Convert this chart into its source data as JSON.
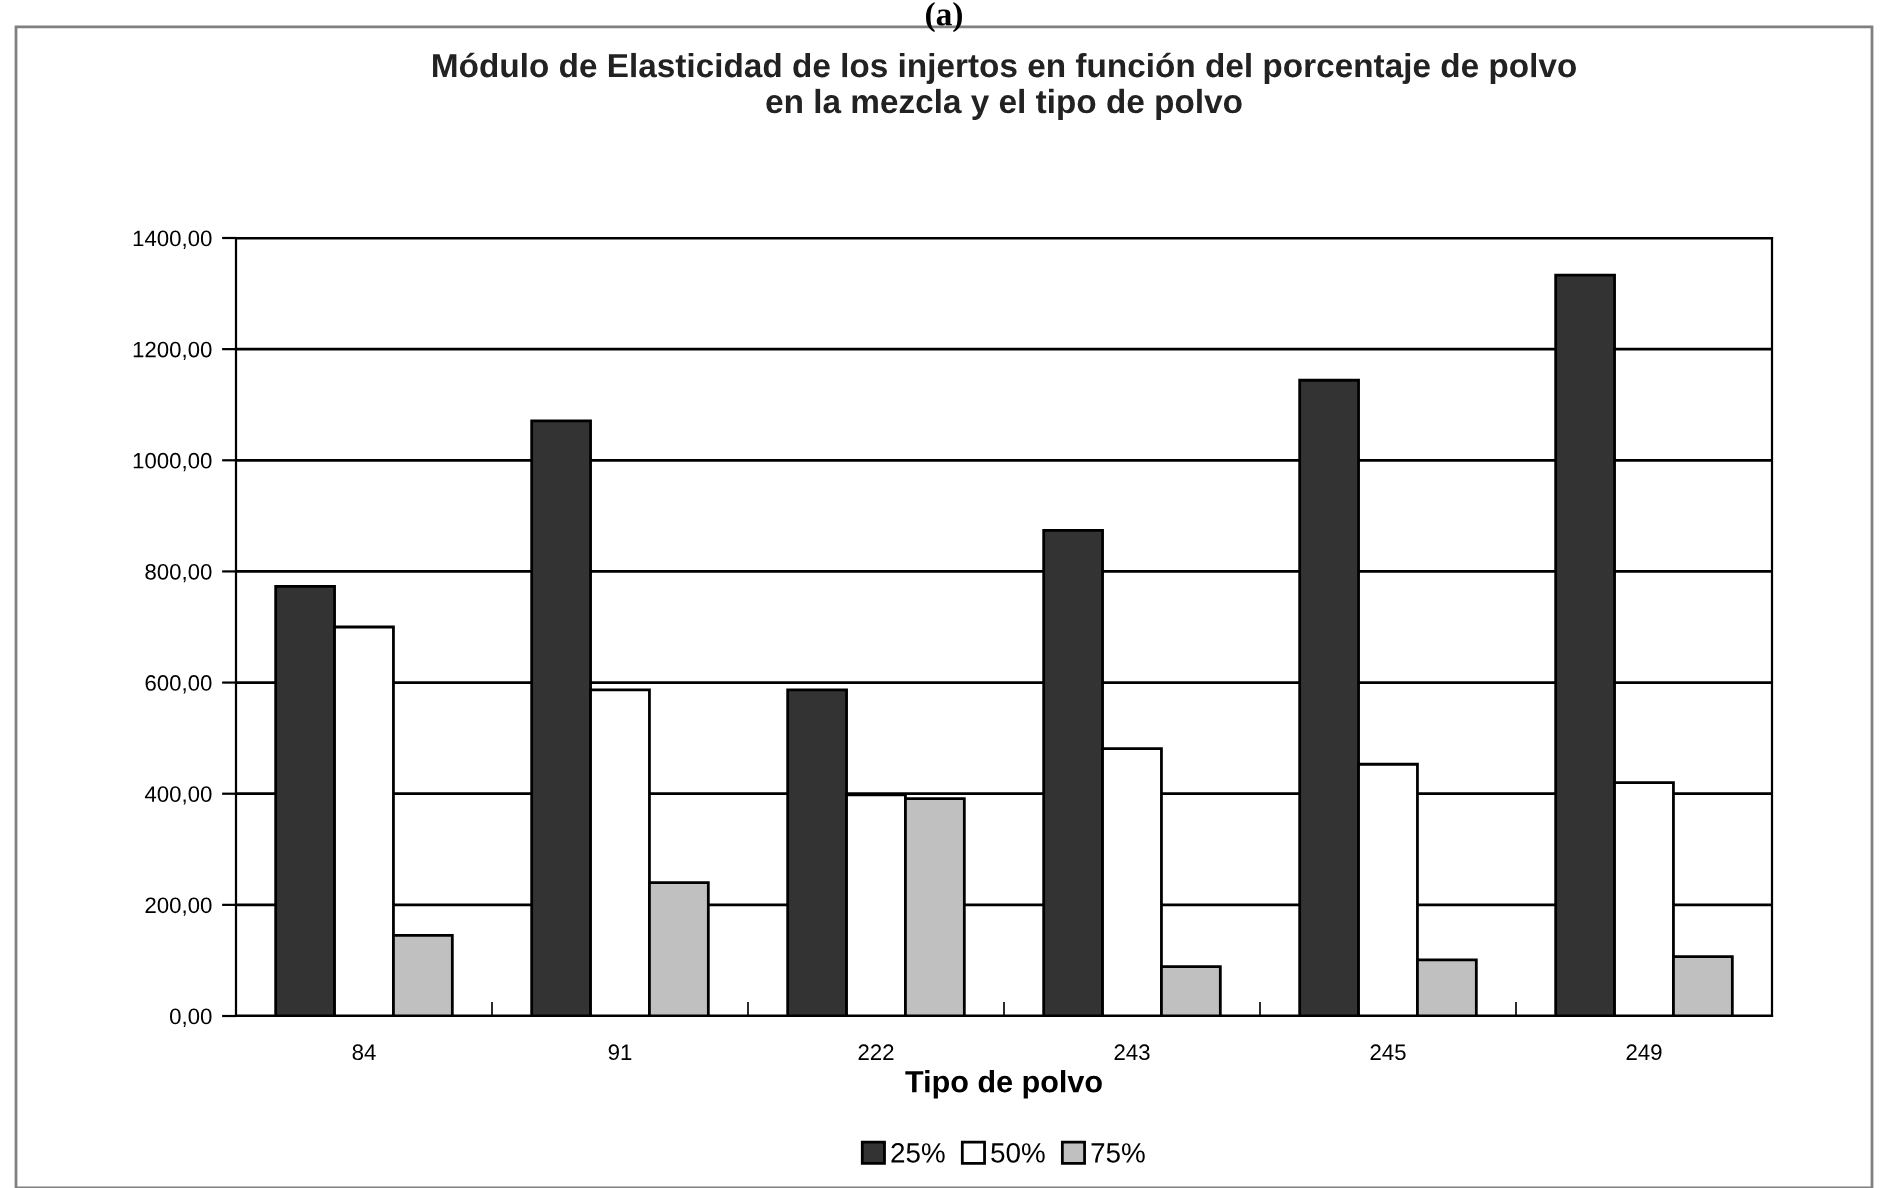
{
  "chart_data": {
    "type": "bar",
    "title": "Módulo de Elasticidad de los injertos en función del porcentaje de polvo\nen la mezcla y el tipo de polvo",
    "xlabel": "Tipo de polvo",
    "categories": [
      "84",
      "91",
      "222",
      "243",
      "245",
      "249"
    ],
    "series": [
      {
        "name": "25%",
        "color": "#333333",
        "values": [
          773,
          1071,
          587,
          874,
          1144,
          1333
        ]
      },
      {
        "name": "50%",
        "color": "#ffffff",
        "values": [
          700,
          587,
          398,
          481,
          453,
          420
        ]
      },
      {
        "name": "75%",
        "color": "#c0c0c0",
        "values": [
          145,
          240,
          391,
          89,
          101,
          107
        ]
      }
    ],
    "ylim": [
      0,
      1400
    ],
    "yticks": [
      {
        "value": 0,
        "label": "0,00"
      },
      {
        "value": 200,
        "label": "200,00"
      },
      {
        "value": 400,
        "label": "400,00"
      },
      {
        "value": 600,
        "label": "600,00"
      },
      {
        "value": 800,
        "label": "800,00"
      },
      {
        "value": 1000,
        "label": "1000,00"
      },
      {
        "value": 1200,
        "label": "1200,00"
      },
      {
        "value": 1400,
        "label": "1400,00"
      }
    ],
    "grid": "y",
    "legend": "bottom",
    "annotations": [
      "(a)"
    ]
  }
}
